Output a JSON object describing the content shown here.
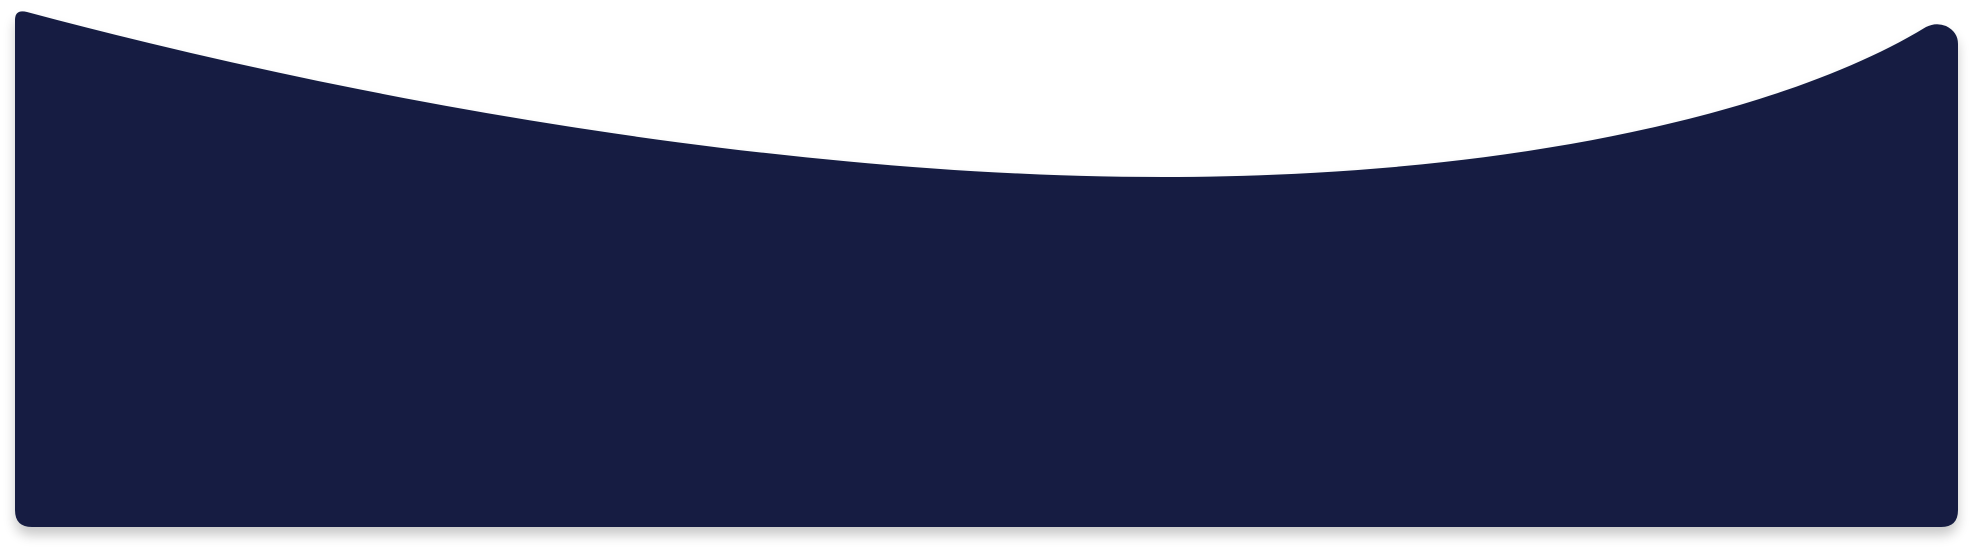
{
  "shape": {
    "name": "curved-banner",
    "fill": "#131e42",
    "background": "#ffffff",
    "shadow": "#000000"
  }
}
